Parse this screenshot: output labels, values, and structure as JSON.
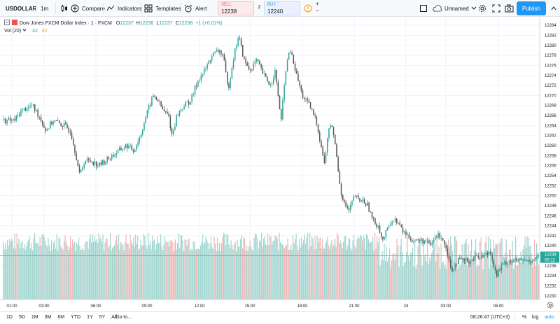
{
  "toolbar": {
    "symbol": "USDOLLAR",
    "interval": "1m",
    "compare": "Compare",
    "indicators": "Indicators",
    "templates": "Templates",
    "alert": "Alert",
    "sell_label": "SELL",
    "sell_price": "12238",
    "spread": "2",
    "buy_label": "BUY",
    "buy_price": "12240",
    "plus": "+",
    "minus": "−",
    "layout_name": "Unnamed",
    "publish": "Publish"
  },
  "legend": {
    "title": "Dow Jones FXCM Dollar Index · 1 · FXCM",
    "o_label": "O",
    "o_value": "12237",
    "h_label": "H",
    "h_value": "12238",
    "l_label": "L",
    "l_value": "12237",
    "c_label": "C",
    "c_value": "12238",
    "change": "+1 (+0.01%)",
    "vol_label": "Vol (20)",
    "vol_value": "42",
    "vol_ma": "42"
  },
  "chart_data": {
    "type": "candlestick",
    "ylim": [
      12229,
      12285
    ],
    "y_ticks": [
      "12284",
      "12282",
      "12280",
      "12278",
      "12276",
      "12274",
      "12272",
      "12270",
      "12268",
      "12266",
      "12264",
      "12262",
      "12260",
      "12258",
      "12256",
      "12254",
      "12252",
      "12250",
      "12248",
      "12246",
      "12244",
      "12242",
      "12240",
      "12238",
      "12236",
      "12234",
      "12232",
      "12230"
    ],
    "x_ticks": [
      "01:00",
      "03:00",
      "06:00",
      "09:00",
      "12:00",
      "15:00",
      "18:00",
      "21:00",
      "24",
      "03:00",
      "06:00"
    ],
    "last_price": "12238",
    "countdown": "00:12",
    "colors": {
      "up": "#26a69a",
      "down": "#ef5350",
      "vol_up": "#9fd5cf",
      "vol_down": "#f3b6b5",
      "grid": "#f0f3fa",
      "last_line": "#26a69a"
    },
    "price_path": [
      [
        0,
        12265
      ],
      [
        20,
        12265
      ],
      [
        30,
        12267
      ],
      [
        45,
        12268
      ],
      [
        55,
        12266
      ],
      [
        65,
        12263
      ],
      [
        75,
        12265
      ],
      [
        90,
        12264
      ],
      [
        100,
        12263
      ],
      [
        108,
        12258
      ],
      [
        113,
        12254
      ],
      [
        120,
        12257
      ],
      [
        130,
        12257
      ],
      [
        140,
        12256
      ],
      [
        150,
        12257
      ],
      [
        160,
        12258
      ],
      [
        170,
        12259
      ],
      [
        180,
        12260
      ],
      [
        190,
        12259
      ],
      [
        200,
        12262
      ],
      [
        208,
        12266
      ],
      [
        218,
        12270
      ],
      [
        225,
        12269
      ],
      [
        232,
        12267
      ],
      [
        240,
        12266
      ],
      [
        245,
        12262
      ],
      [
        252,
        12266
      ],
      [
        262,
        12268
      ],
      [
        272,
        12269
      ],
      [
        282,
        12273
      ],
      [
        292,
        12275
      ],
      [
        302,
        12278
      ],
      [
        312,
        12279
      ],
      [
        318,
        12278
      ],
      [
        325,
        12271
      ],
      [
        332,
        12277
      ],
      [
        340,
        12282
      ],
      [
        348,
        12277
      ],
      [
        356,
        12275
      ],
      [
        366,
        12277
      ],
      [
        376,
        12274
      ],
      [
        386,
        12272
      ],
      [
        392,
        12275
      ],
      [
        401,
        12265
      ],
      [
        408,
        12276
      ],
      [
        414,
        12279
      ],
      [
        421,
        12275
      ],
      [
        431,
        12270
      ],
      [
        441,
        12268
      ],
      [
        451,
        12265
      ],
      [
        458,
        12260
      ],
      [
        463,
        12256
      ],
      [
        468,
        12263
      ],
      [
        474,
        12264
      ],
      [
        480,
        12258
      ],
      [
        486,
        12251
      ],
      [
        492,
        12248
      ],
      [
        498,
        12247
      ],
      [
        506,
        12250
      ],
      [
        512,
        12249
      ],
      [
        518,
        12249
      ],
      [
        525,
        12248
      ],
      [
        532,
        12245
      ],
      [
        540,
        12244
      ],
      [
        546,
        12241
      ],
      [
        552,
        12243
      ],
      [
        558,
        12245
      ],
      [
        566,
        12245
      ],
      [
        574,
        12243
      ],
      [
        582,
        12242
      ],
      [
        590,
        12241
      ],
      [
        598,
        12241
      ],
      [
        606,
        12241
      ],
      [
        614,
        12240
      ],
      [
        622,
        12242
      ],
      [
        630,
        12242
      ],
      [
        638,
        12239
      ],
      [
        644,
        12235
      ],
      [
        652,
        12237
      ],
      [
        660,
        12237
      ],
      [
        670,
        12237
      ],
      [
        680,
        12238
      ],
      [
        690,
        12238
      ],
      [
        700,
        12239
      ],
      [
        708,
        12234
      ],
      [
        716,
        12236
      ],
      [
        724,
        12237
      ],
      [
        734,
        12237
      ],
      [
        744,
        12237
      ],
      [
        756,
        12237
      ],
      [
        770,
        12238
      ]
    ]
  },
  "bottombar": {
    "ranges": [
      "1D",
      "5D",
      "1M",
      "3M",
      "6M",
      "YTD",
      "1Y",
      "5Y",
      "All"
    ],
    "goto": "Go to...",
    "clock": "08:26:47 (UTC+3)",
    "percent": "%",
    "log": "log",
    "auto": "auto"
  }
}
